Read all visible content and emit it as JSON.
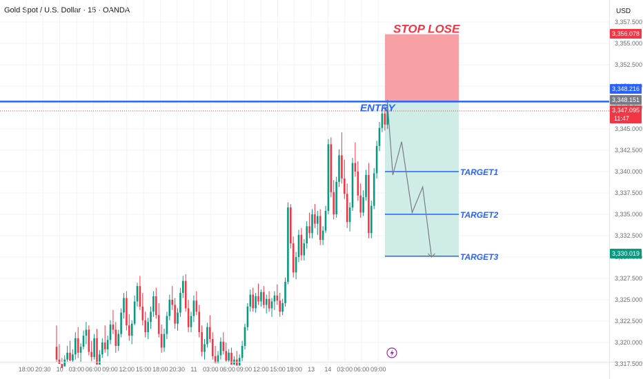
{
  "header": {
    "title": "Gold Spot / U.S. Dollar · 15 · OANDA",
    "currency": "USD"
  },
  "chart_data": {
    "type": "candlestick",
    "y_axis": {
      "ticks": [
        "3,357.500",
        "3,355.000",
        "3,352.500",
        "3,350.000",
        "3,347.500",
        "3,345.000",
        "3,342.500",
        "3,340.000",
        "3,337.500",
        "3,335.000",
        "3,332.500",
        "3,330.000",
        "3,327.500",
        "3,325.000",
        "3,322.500",
        "3,320.000",
        "3,317.500"
      ],
      "range": [
        3316.6,
        3358.2
      ]
    },
    "x_axis": {
      "ticks": [
        "18:00",
        "20:30",
        "10",
        "03:00",
        "06:00",
        "09:00",
        "12:00",
        "15:00",
        "18:00",
        "20:30",
        "11",
        "03:00",
        "06:00",
        "09:00",
        "12:00",
        "15:00",
        "18:00",
        "13",
        "14",
        "03:00",
        "06:00",
        "09:00"
      ]
    },
    "price_tags": [
      {
        "label": "3,356.078",
        "value": 3356.078,
        "color": "#f23645"
      },
      {
        "label": "3,348.216",
        "value": 3348.216,
        "color": "#2962ff"
      },
      {
        "label": "3,348.151",
        "value": 3348.151,
        "color": "#787b86"
      },
      {
        "label": "3,347.095",
        "sub": "11:47",
        "value": 3347.095,
        "color": "#f23645"
      },
      {
        "label": "3,330.019",
        "value": 3330.019,
        "color": "#089981"
      }
    ],
    "annotations": {
      "stop_label": "STOP LOSE",
      "entry_label": "ENTRY",
      "targets": [
        {
          "label": "TARGET1",
          "value": 3340.0
        },
        {
          "label": "TARGET2",
          "value": 3335.0
        },
        {
          "label": "TARGET3",
          "value": 3330.1
        }
      ]
    },
    "levels": {
      "entry": 3348.2,
      "stop": 3356.078,
      "current": 3347.095
    },
    "path": [
      {
        "bar": 0,
        "value": 3348.0
      },
      {
        "bar": 3,
        "value": 3339.6
      },
      {
        "bar": 8,
        "value": 3343.5
      },
      {
        "bar": 14,
        "value": 3335.2
      },
      {
        "bar": 20,
        "value": 3338.2
      },
      {
        "bar": 25,
        "value": 3330.0
      }
    ],
    "candles": [
      [
        3319.5,
        3322.0,
        3317.0,
        3318.0
      ],
      [
        3318.0,
        3319.8,
        3316.6,
        3317.5
      ],
      [
        3317.5,
        3318.2,
        3316.6,
        3317.0
      ],
      [
        3317.2,
        3318.5,
        3316.6,
        3318.0
      ],
      [
        3318.0,
        3319.6,
        3317.6,
        3318.8
      ],
      [
        3318.8,
        3320.2,
        3317.8,
        3317.9
      ],
      [
        3317.9,
        3319.2,
        3316.9,
        3318.6
      ],
      [
        3318.6,
        3321.2,
        3318.0,
        3320.5
      ],
      [
        3320.5,
        3321.8,
        3318.2,
        3318.8
      ],
      [
        3318.8,
        3319.9,
        3317.5,
        3319.5
      ],
      [
        3319.5,
        3321.4,
        3319.2,
        3320.8
      ],
      [
        3320.8,
        3322.4,
        3319.8,
        3321.5
      ],
      [
        3321.5,
        3322.0,
        3318.5,
        3318.9
      ],
      [
        3318.9,
        3320.2,
        3317.8,
        3318.3
      ],
      [
        3318.3,
        3321.0,
        3318.0,
        3320.5
      ],
      [
        3320.5,
        3321.6,
        3316.9,
        3317.4
      ],
      [
        3317.4,
        3319.1,
        3316.6,
        3318.6
      ],
      [
        3318.6,
        3320.5,
        3318.2,
        3320.0
      ],
      [
        3320.0,
        3322.0,
        3318.8,
        3319.2
      ],
      [
        3319.2,
        3320.8,
        3318.4,
        3320.3
      ],
      [
        3320.3,
        3322.6,
        3319.8,
        3322.1
      ],
      [
        3322.1,
        3323.8,
        3321.0,
        3321.5
      ],
      [
        3321.5,
        3322.4,
        3318.8,
        3319.6
      ],
      [
        3319.6,
        3321.5,
        3319.0,
        3321.0
      ],
      [
        3321.0,
        3324.0,
        3320.6,
        3323.5
      ],
      [
        3323.5,
        3325.8,
        3322.8,
        3325.2
      ],
      [
        3325.2,
        3326.0,
        3321.4,
        3322.0
      ],
      [
        3322.0,
        3323.3,
        3320.2,
        3320.8
      ],
      [
        3320.8,
        3322.6,
        3319.8,
        3322.2
      ],
      [
        3322.2,
        3325.5,
        3322.0,
        3324.8
      ],
      [
        3324.8,
        3327.0,
        3324.2,
        3326.6
      ],
      [
        3326.6,
        3327.8,
        3323.8,
        3324.2
      ],
      [
        3324.2,
        3325.8,
        3322.0,
        3322.6
      ],
      [
        3322.6,
        3323.6,
        3320.6,
        3321.2
      ],
      [
        3321.2,
        3322.9,
        3320.4,
        3322.4
      ],
      [
        3322.4,
        3324.2,
        3321.6,
        3323.6
      ],
      [
        3323.6,
        3326.0,
        3323.0,
        3325.4
      ],
      [
        3325.4,
        3326.4,
        3322.8,
        3323.2
      ],
      [
        3323.2,
        3324.6,
        3320.6,
        3321.0
      ],
      [
        3321.0,
        3322.1,
        3318.8,
        3319.4
      ],
      [
        3319.4,
        3321.6,
        3318.9,
        3321.0
      ],
      [
        3321.0,
        3323.6,
        3320.4,
        3323.1
      ],
      [
        3323.1,
        3325.6,
        3322.6,
        3325.0
      ],
      [
        3325.0,
        3326.6,
        3323.8,
        3324.4
      ],
      [
        3324.4,
        3325.2,
        3321.6,
        3322.2
      ],
      [
        3322.2,
        3324.0,
        3321.4,
        3323.5
      ],
      [
        3323.5,
        3326.4,
        3323.0,
        3325.8
      ],
      [
        3325.8,
        3327.8,
        3325.2,
        3327.2
      ],
      [
        3327.2,
        3328.0,
        3323.6,
        3324.0
      ],
      [
        3324.0,
        3325.0,
        3321.2,
        3321.8
      ],
      [
        3321.8,
        3323.6,
        3321.2,
        3323.1
      ],
      [
        3323.1,
        3325.5,
        3322.4,
        3324.9
      ],
      [
        3324.9,
        3326.0,
        3323.2,
        3323.6
      ],
      [
        3323.6,
        3324.4,
        3320.6,
        3321.2
      ],
      [
        3321.2,
        3322.0,
        3318.4,
        3318.9
      ],
      [
        3318.9,
        3320.4,
        3318.0,
        3319.8
      ],
      [
        3319.8,
        3322.3,
        3319.4,
        3321.8
      ],
      [
        3321.8,
        3323.2,
        3320.0,
        3320.4
      ],
      [
        3320.4,
        3321.2,
        3318.0,
        3318.4
      ],
      [
        3318.4,
        3319.6,
        3317.0,
        3317.6
      ],
      [
        3317.6,
        3319.0,
        3316.8,
        3318.5
      ],
      [
        3318.5,
        3320.6,
        3318.0,
        3320.1
      ],
      [
        3320.1,
        3321.2,
        3318.6,
        3319.0
      ],
      [
        3319.0,
        3320.0,
        3317.4,
        3317.9
      ],
      [
        3317.9,
        3319.2,
        3317.0,
        3318.8
      ],
      [
        3318.8,
        3319.4,
        3316.9,
        3317.4
      ],
      [
        3317.4,
        3318.4,
        3316.8,
        3318.0
      ],
      [
        3318.0,
        3319.0,
        3316.9,
        3317.3
      ],
      [
        3317.3,
        3318.6,
        3316.8,
        3318.2
      ],
      [
        3318.2,
        3320.2,
        3317.8,
        3319.6
      ],
      [
        3319.6,
        3322.2,
        3319.2,
        3321.8
      ],
      [
        3321.8,
        3324.6,
        3321.4,
        3324.2
      ],
      [
        3324.2,
        3326.2,
        3323.6,
        3325.6
      ],
      [
        3325.6,
        3326.4,
        3323.6,
        3324.0
      ],
      [
        3324.0,
        3325.8,
        3323.5,
        3325.4
      ],
      [
        3325.4,
        3326.9,
        3324.4,
        3324.8
      ],
      [
        3324.8,
        3326.2,
        3324.2,
        3325.9
      ],
      [
        3325.9,
        3326.6,
        3324.0,
        3324.4
      ],
      [
        3324.4,
        3325.6,
        3323.4,
        3325.1
      ],
      [
        3325.1,
        3326.0,
        3323.6,
        3324.0
      ],
      [
        3324.0,
        3325.2,
        3323.0,
        3324.8
      ],
      [
        3324.8,
        3326.0,
        3323.8,
        3325.5
      ],
      [
        3325.5,
        3326.8,
        3324.4,
        3324.9
      ],
      [
        3324.9,
        3325.8,
        3323.0,
        3323.6
      ],
      [
        3323.6,
        3325.1,
        3323.2,
        3324.6
      ],
      [
        3324.6,
        3327.6,
        3324.2,
        3327.1
      ],
      [
        3327.1,
        3336.4,
        3326.8,
        3335.8
      ],
      [
        3335.8,
        3336.2,
        3331.0,
        3331.6
      ],
      [
        3331.6,
        3332.4,
        3327.6,
        3328.2
      ],
      [
        3328.2,
        3330.6,
        3327.4,
        3330.0
      ],
      [
        3330.0,
        3333.2,
        3329.4,
        3332.6
      ],
      [
        3332.6,
        3333.4,
        3329.6,
        3330.2
      ],
      [
        3330.2,
        3332.1,
        3329.6,
        3331.6
      ],
      [
        3331.6,
        3334.2,
        3331.0,
        3333.6
      ],
      [
        3333.6,
        3335.2,
        3332.2,
        3332.8
      ],
      [
        3332.8,
        3335.6,
        3332.2,
        3335.0
      ],
      [
        3335.0,
        3336.2,
        3333.4,
        3333.9
      ],
      [
        3333.9,
        3335.4,
        3332.6,
        3334.8
      ],
      [
        3334.8,
        3335.6,
        3331.4,
        3332.0
      ],
      [
        3332.0,
        3333.6,
        3331.4,
        3333.1
      ],
      [
        3333.1,
        3336.0,
        3332.8,
        3335.4
      ],
      [
        3335.4,
        3343.8,
        3335.0,
        3343.2
      ],
      [
        3343.2,
        3344.0,
        3337.0,
        3337.6
      ],
      [
        3337.6,
        3339.0,
        3334.4,
        3335.0
      ],
      [
        3335.0,
        3339.4,
        3334.6,
        3338.8
      ],
      [
        3338.8,
        3342.6,
        3338.2,
        3341.9
      ],
      [
        3341.9,
        3344.6,
        3338.6,
        3339.2
      ],
      [
        3339.2,
        3341.4,
        3336.8,
        3337.4
      ],
      [
        3337.4,
        3338.6,
        3333.4,
        3334.1
      ],
      [
        3334.1,
        3336.4,
        3333.0,
        3335.8
      ],
      [
        3335.8,
        3341.6,
        3335.4,
        3341.0
      ],
      [
        3341.0,
        3343.4,
        3339.4,
        3340.0
      ],
      [
        3340.0,
        3341.2,
        3336.6,
        3337.2
      ],
      [
        3337.2,
        3338.6,
        3334.6,
        3335.2
      ],
      [
        3335.2,
        3337.8,
        3334.8,
        3337.0
      ],
      [
        3337.0,
        3340.2,
        3336.6,
        3339.6
      ],
      [
        3339.6,
        3341.0,
        3332.2,
        3332.8
      ],
      [
        3332.8,
        3336.6,
        3332.2,
        3336.0
      ],
      [
        3336.0,
        3340.4,
        3335.6,
        3339.8
      ],
      [
        3339.8,
        3343.6,
        3339.2,
        3343.0
      ],
      [
        3343.0,
        3345.8,
        3342.4,
        3345.1
      ],
      [
        3345.1,
        3347.4,
        3344.6,
        3346.8
      ],
      [
        3346.8,
        3347.9,
        3344.8,
        3345.5
      ],
      [
        3345.5,
        3348.4,
        3345.0,
        3347.2
      ]
    ]
  }
}
